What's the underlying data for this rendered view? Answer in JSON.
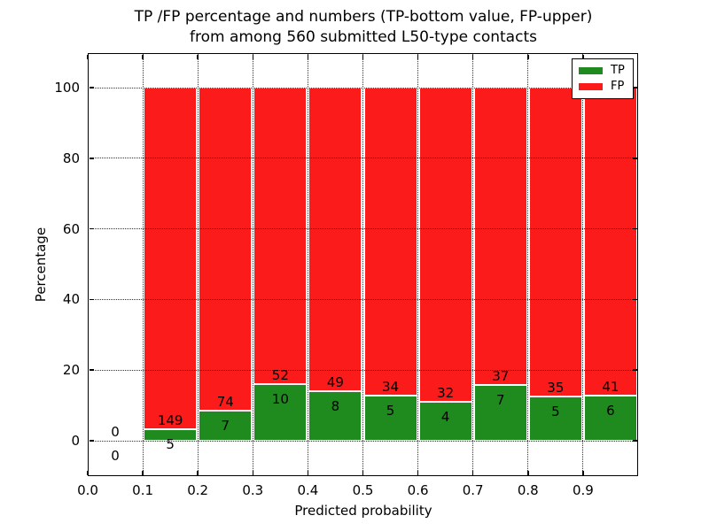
{
  "chart_data": {
    "type": "bar",
    "stacked": true,
    "title_lines": [
      "TP /FP percentage and numbers (TP-bottom value, FP-upper)",
      "from among 560 submitted L50-type contacts"
    ],
    "xlabel": "Predicted probability",
    "ylabel": "Percentage",
    "total_contacts": 560,
    "x_tick_labels": [
      "0.0",
      "0.1",
      "0.2",
      "0.3",
      "0.4",
      "0.5",
      "0.6",
      "0.7",
      "0.8",
      "0.9"
    ],
    "y_ticks": [
      0,
      20,
      40,
      60,
      80,
      100
    ],
    "y_tick_labels": [
      "0",
      "20",
      "40",
      "60",
      "80",
      "100"
    ],
    "xlim": [
      0.0,
      1.0
    ],
    "ylim": [
      -11,
      110
    ],
    "grid": "dotted, both axes, drawn above bars",
    "bar_value_label_rule": "TP count printed below green segment top, FP count printed above it",
    "bins": [
      {
        "x0": 0.0,
        "x1": 0.1,
        "tp": 0,
        "fp": 0
      },
      {
        "x0": 0.1,
        "x1": 0.2,
        "tp": 5,
        "fp": 149
      },
      {
        "x0": 0.2,
        "x1": 0.3,
        "tp": 7,
        "fp": 74
      },
      {
        "x0": 0.3,
        "x1": 0.4,
        "tp": 10,
        "fp": 52
      },
      {
        "x0": 0.4,
        "x1": 0.5,
        "tp": 8,
        "fp": 49
      },
      {
        "x0": 0.5,
        "x1": 0.6,
        "tp": 5,
        "fp": 34
      },
      {
        "x0": 0.6,
        "x1": 0.7,
        "tp": 4,
        "fp": 32
      },
      {
        "x0": 0.7,
        "x1": 0.8,
        "tp": 7,
        "fp": 37
      },
      {
        "x0": 0.8,
        "x1": 0.9,
        "tp": 5,
        "fp": 35
      },
      {
        "x0": 0.9,
        "x1": 1.0,
        "tp": 6,
        "fp": 41
      }
    ],
    "legend": {
      "position": "upper right",
      "entries": [
        {
          "label": "TP",
          "color": "#1f8b1f"
        },
        {
          "label": "FP",
          "color": "#fb1b1b"
        }
      ]
    },
    "colors": {
      "tp_green": "#1f8b1f",
      "fp_red": "#fb1b1b",
      "background": "#ffffff",
      "axis": "#000000"
    }
  }
}
